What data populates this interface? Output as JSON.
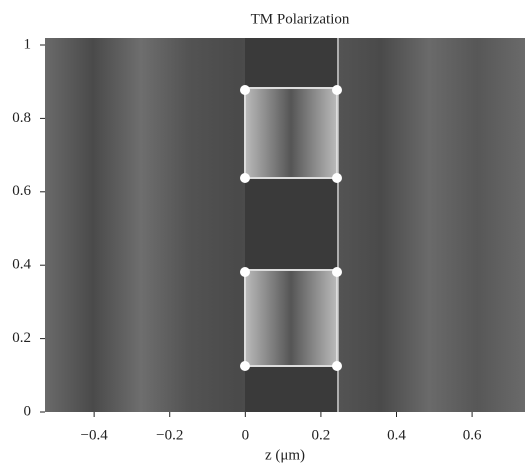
{
  "chart_data": {
    "type": "heatmap",
    "title": "TM Polarization",
    "xlabel": "z (μm)",
    "xlim": [
      -0.53,
      0.74
    ],
    "ylim": [
      0,
      1
    ],
    "xticks": [
      {
        "value": -0.4,
        "label": "−0.4"
      },
      {
        "value": -0.2,
        "label": "−0.2"
      },
      0,
      0.2,
      0.4,
      0.6
    ],
    "yticks": [
      0,
      0.2,
      0.4,
      0.6,
      0.8,
      1
    ]
  }
}
